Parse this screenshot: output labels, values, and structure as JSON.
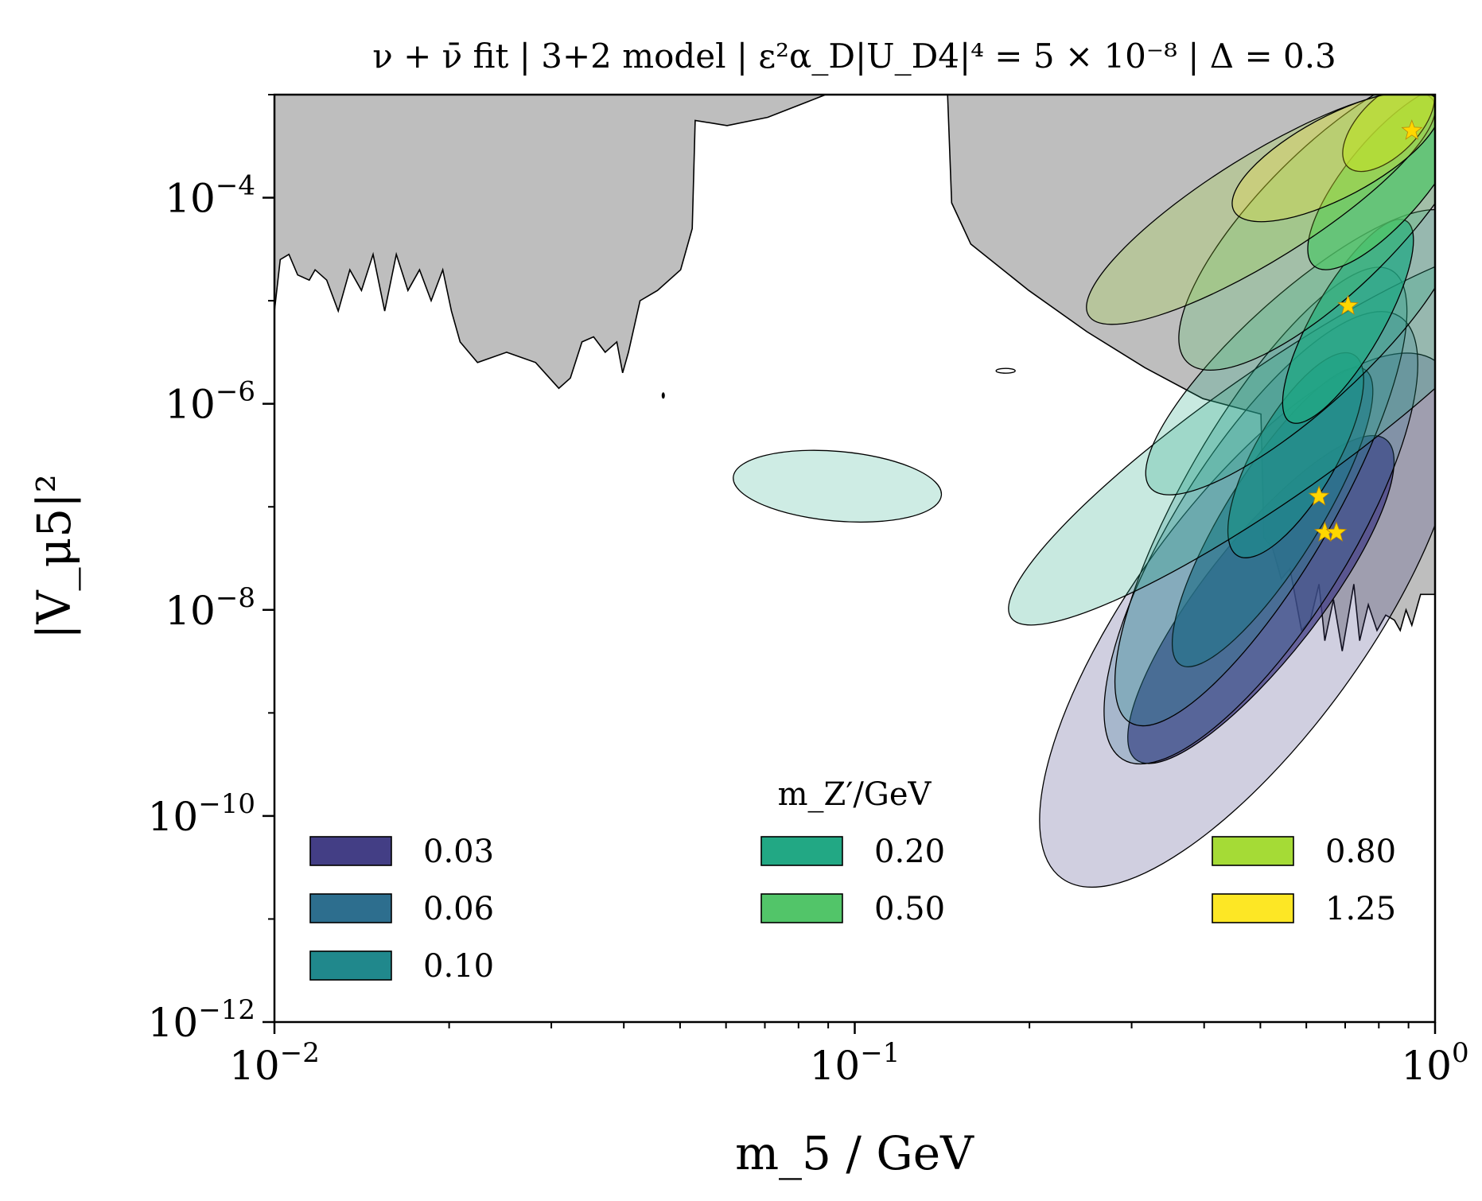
{
  "chart_data": {
    "type": "contour",
    "title": "ν + ν̄ fit | 3+2 model | ε²α_D|U_D4|⁴ = 5 × 10⁻⁸ | Δ = 0.3",
    "xlabel": "m_5 / GeV",
    "ylabel": "|V_μ5|²",
    "xscale": "log",
    "yscale": "log",
    "xlim_log10": [
      -2,
      0
    ],
    "ylim_log10": [
      -12,
      -3
    ],
    "x_ticks": [
      {
        "exp": -2,
        "base": "10",
        "sup": "−2"
      },
      {
        "exp": -1,
        "base": "10",
        "sup": "−1"
      },
      {
        "exp": 0,
        "base": "10",
        "sup": "0"
      }
    ],
    "y_ticks": [
      {
        "exp": -4,
        "base": "10",
        "sup": "−4"
      },
      {
        "exp": -6,
        "base": "10",
        "sup": "−6"
      },
      {
        "exp": -8,
        "base": "10",
        "sup": "−8"
      },
      {
        "exp": -10,
        "base": "10",
        "sup": "−10"
      },
      {
        "exp": -12,
        "base": "10",
        "sup": "−12"
      }
    ],
    "legend": {
      "title": "m_Z′/GeV",
      "placement": "bottom",
      "entries": [
        {
          "label": "0.03",
          "color": "#433e85"
        },
        {
          "label": "0.06",
          "color": "#2d6e8e"
        },
        {
          "label": "0.10",
          "color": "#20888c"
        },
        {
          "label": "0.20",
          "color": "#22a884"
        },
        {
          "label": "0.50",
          "color": "#52c569"
        },
        {
          "label": "0.80",
          "color": "#a5db36"
        },
        {
          "label": "1.25",
          "color": "#fde725"
        }
      ]
    },
    "excluded_region": {
      "color": "#bebebe",
      "boundary": [
        [
          -2.0,
          -5.1
        ],
        [
          -1.99,
          -4.6
        ],
        [
          -1.975,
          -4.55
        ],
        [
          -1.96,
          -4.75
        ],
        [
          -1.94,
          -4.8
        ],
        [
          -1.93,
          -4.7
        ],
        [
          -1.91,
          -4.8
        ],
        [
          -1.89,
          -5.1
        ],
        [
          -1.87,
          -4.7
        ],
        [
          -1.85,
          -4.9
        ],
        [
          -1.83,
          -4.55
        ],
        [
          -1.81,
          -5.1
        ],
        [
          -1.79,
          -4.55
        ],
        [
          -1.77,
          -4.9
        ],
        [
          -1.75,
          -4.7
        ],
        [
          -1.73,
          -5.0
        ],
        [
          -1.71,
          -4.7
        ],
        [
          -1.695,
          -5.1
        ],
        [
          -1.68,
          -5.4
        ],
        [
          -1.65,
          -5.6
        ],
        [
          -1.6,
          -5.5
        ],
        [
          -1.55,
          -5.6
        ],
        [
          -1.51,
          -5.85
        ],
        [
          -1.49,
          -5.75
        ],
        [
          -1.47,
          -5.4
        ],
        [
          -1.45,
          -5.35
        ],
        [
          -1.43,
          -5.5
        ],
        [
          -1.41,
          -5.4
        ],
        [
          -1.4,
          -5.7
        ],
        [
          -1.39,
          -5.5
        ],
        [
          -1.37,
          -5.0
        ],
        [
          -1.34,
          -4.9
        ],
        [
          -1.3,
          -4.7
        ],
        [
          -1.28,
          -4.3
        ],
        [
          -1.275,
          -3.25
        ],
        [
          -1.22,
          -3.3
        ],
        [
          -1.15,
          -3.22
        ],
        [
          -1.05,
          -3.0
        ],
        [
          -0.84,
          -3.0
        ],
        [
          -0.833,
          -4.05
        ],
        [
          -0.8,
          -4.45
        ],
        [
          -0.7,
          -4.9
        ],
        [
          -0.6,
          -5.3
        ],
        [
          -0.5,
          -5.65
        ],
        [
          -0.4,
          -5.95
        ],
        [
          -0.3,
          -6.1
        ],
        [
          -0.295,
          -7.3
        ],
        [
          -0.28,
          -7.4
        ],
        [
          -0.265,
          -7.7
        ],
        [
          -0.25,
          -7.6
        ],
        [
          -0.23,
          -8.2
        ],
        [
          -0.215,
          -8.1
        ],
        [
          -0.2,
          -7.75
        ],
        [
          -0.19,
          -8.3
        ],
        [
          -0.175,
          -7.9
        ],
        [
          -0.16,
          -8.4
        ],
        [
          -0.14,
          -7.75
        ],
        [
          -0.13,
          -8.3
        ],
        [
          -0.115,
          -7.95
        ],
        [
          -0.1,
          -8.2
        ],
        [
          -0.085,
          -8.05
        ],
        [
          -0.07,
          -8.1
        ],
        [
          -0.06,
          -8.2
        ],
        [
          -0.05,
          -8.0
        ],
        [
          -0.04,
          -8.15
        ],
        [
          -0.025,
          -7.85
        ],
        [
          -0.0,
          -7.85
        ],
        [
          -0.0,
          -3.0
        ]
      ]
    },
    "contour_regions": [
      {
        "color": "#433e85",
        "level": "outer",
        "center": [
          -0.32,
          -8.1
        ],
        "halflen": 0.55,
        "width": 0.2,
        "angle_deg": 54
      },
      {
        "color": "#433e85",
        "level": "inner",
        "center": [
          -0.3,
          -7.9
        ],
        "halflen": 0.35,
        "width": 0.1,
        "angle_deg": 52
      },
      {
        "color": "#2d6e8e",
        "level": "outer",
        "center": [
          -0.3,
          -7.3
        ],
        "halflen": 0.45,
        "width": 0.15,
        "angle_deg": 58
      },
      {
        "color": "#2d6e8e",
        "level": "inner",
        "center": [
          -0.28,
          -7.1
        ],
        "halflen": 0.3,
        "width": 0.08,
        "angle_deg": 58
      },
      {
        "color": "#20888c",
        "level": "outer",
        "center": [
          -0.3,
          -6.9
        ],
        "halflen": 0.45,
        "width": 0.13,
        "angle_deg": 60
      },
      {
        "color": "#20888c",
        "level": "inner",
        "center": [
          -0.24,
          -6.5
        ],
        "halflen": 0.2,
        "width": 0.07,
        "angle_deg": 60
      },
      {
        "color": "#22a884",
        "level": "outer",
        "center": [
          -0.28,
          -6.3
        ],
        "halflen": 0.55,
        "width": 0.11,
        "angle_deg": 35
      },
      {
        "color": "#22a884",
        "level": "outer",
        "center": [
          -0.23,
          -5.5
        ],
        "halflen": 0.35,
        "width": 0.1,
        "angle_deg": 42
      },
      {
        "color": "#22a884",
        "level": "inner",
        "center": [
          -0.15,
          -5.2
        ],
        "halflen": 0.2,
        "width": 0.06,
        "angle_deg": 60
      },
      {
        "color": "#22a884",
        "level": "island",
        "center": [
          -1.03,
          -6.8
        ],
        "halflen": 0.18,
        "width": 0.06,
        "angle_deg": -5
      },
      {
        "color": "#52c569",
        "level": "outer",
        "center": [
          -0.18,
          -4.2
        ],
        "halflen": 0.35,
        "width": 0.12,
        "angle_deg": 45
      },
      {
        "color": "#52c569",
        "level": "inner",
        "center": [
          -0.08,
          -3.8
        ],
        "halflen": 0.2,
        "width": 0.07,
        "angle_deg": 50
      },
      {
        "color": "#a5db36",
        "level": "outer",
        "center": [
          -0.3,
          -4.1
        ],
        "halflen": 0.35,
        "width": 0.09,
        "angle_deg": 32
      },
      {
        "color": "#a5db36",
        "level": "inner",
        "center": [
          -0.08,
          -3.3
        ],
        "halflen": 0.1,
        "width": 0.05,
        "angle_deg": 45
      },
      {
        "color": "#fde725",
        "level": "outer",
        "center": [
          -0.17,
          -3.6
        ],
        "halflen": 0.2,
        "width": 0.07,
        "angle_deg": 28
      }
    ],
    "best_fit_markers": {
      "color": "#ffd700",
      "points": [
        [
          -0.04,
          -3.35
        ],
        [
          -0.15,
          -5.05
        ],
        [
          -0.2,
          -6.9
        ],
        [
          -0.19,
          -7.25
        ],
        [
          -0.17,
          -7.25
        ]
      ]
    }
  }
}
